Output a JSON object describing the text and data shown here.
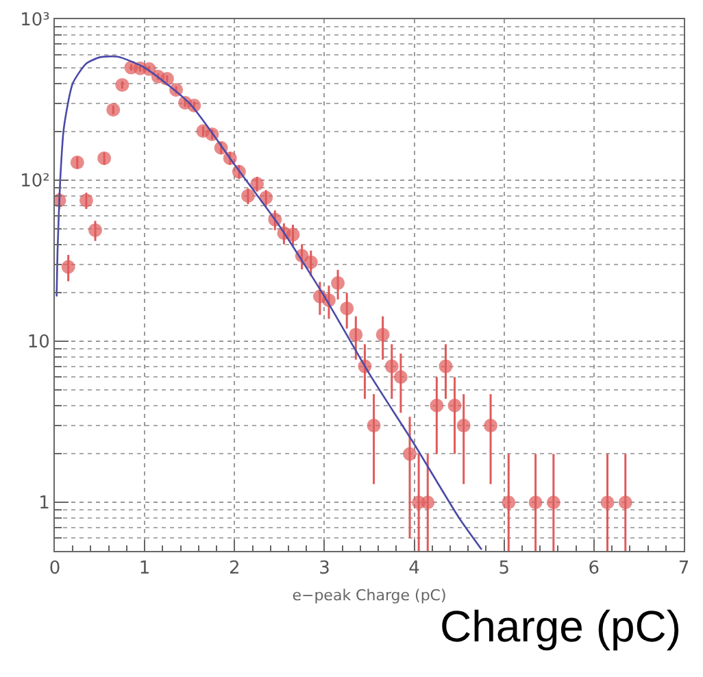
{
  "chart_data": {
    "type": "scatter",
    "xlabel": "e−peak Charge (pC)",
    "annotations": [
      "Charge (pC)"
    ],
    "xlim": [
      0,
      7
    ],
    "xticks": [
      0,
      1,
      2,
      3,
      4,
      5,
      6,
      7
    ],
    "ylim": [
      0.5,
      1000
    ],
    "yticks": [
      1,
      10,
      {
        "value": 100,
        "label": "10²"
      },
      {
        "value": 1000,
        "label": "10³"
      }
    ],
    "log": "y",
    "grid": true,
    "marker": "circle",
    "series": [
      {
        "color": "#e05a5a",
        "x": [
          0.05,
          0.15,
          0.25,
          0.35,
          0.45,
          0.55,
          0.65,
          0.75,
          0.85,
          0.95,
          1.05,
          1.15,
          1.25,
          1.35,
          1.45,
          1.55,
          1.65,
          1.75,
          1.85,
          1.95,
          2.05,
          2.15,
          2.25,
          2.35,
          2.45,
          2.55,
          2.65,
          2.75,
          2.85,
          2.95,
          3.05,
          3.15,
          3.25,
          3.35,
          3.45,
          3.55,
          3.65,
          3.75,
          3.85,
          3.95,
          4.05,
          4.15,
          4.25,
          4.35,
          4.45,
          4.55,
          4.85,
          5.05,
          5.35,
          5.55,
          6.15,
          6.35
        ],
        "values": [
          75,
          29,
          129,
          75,
          49,
          137,
          274,
          391,
          501,
          495,
          490,
          440,
          427,
          364,
          303,
          291,
          202,
          193,
          159,
          137,
          113,
          80,
          95,
          78,
          57,
          47,
          46,
          34,
          31,
          19,
          18,
          23,
          16,
          11,
          7,
          3,
          11,
          7,
          6,
          2,
          1,
          1,
          4,
          7,
          4,
          3,
          3,
          1,
          1,
          1,
          1,
          1
        ],
        "errors": [
          8.7,
          5.4,
          11,
          8.7,
          7,
          12,
          17,
          20,
          22,
          22,
          22,
          21,
          21,
          19,
          17,
          17,
          14,
          14,
          13,
          12,
          11,
          9,
          10,
          9,
          8,
          7,
          7,
          6,
          5.6,
          4.4,
          4.2,
          4.8,
          4,
          3.3,
          2.6,
          1.7,
          3.3,
          2.6,
          2.4,
          1.4,
          [
            0.5,
            2
          ],
          [
            0.5,
            2
          ],
          2,
          2.6,
          2,
          1.7,
          1.7,
          [
            0.5,
            2
          ],
          [
            0.5,
            2
          ],
          [
            0.5,
            2
          ],
          [
            0.5,
            2
          ],
          [
            0.5,
            2
          ]
        ]
      },
      {
        "type": "line",
        "color": "#4a4aa8",
        "line_style": "solid",
        "marker": "none",
        "x": [
          0.02,
          0.03,
          0.06,
          0.1,
          0.2,
          0.35,
          0.5,
          0.7,
          1.0,
          1.5,
          2.0,
          2.5,
          3.0,
          3.5,
          4.0,
          4.5,
          4.75
        ],
        "values": [
          19,
          36,
          100,
          210,
          400,
          530,
          580,
          585,
          500,
          300,
          125,
          52,
          19,
          6.3,
          2.3,
          0.8,
          0.51
        ]
      }
    ]
  }
}
